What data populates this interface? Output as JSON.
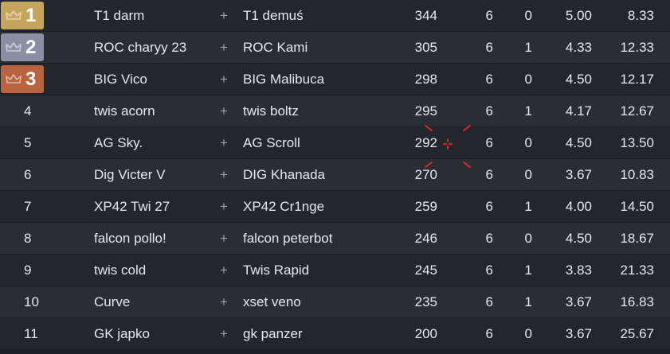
{
  "rows": [
    {
      "rank": "1",
      "player1": "T1 darm",
      "plus": "+",
      "player2": "T1 demuś",
      "score": "344",
      "games": "6",
      "wins": "0",
      "avg": "5.00",
      "avg_place": "8.33",
      "badge": "gold"
    },
    {
      "rank": "2",
      "player1": "ROC charyy 23",
      "plus": "+",
      "player2": "ROC Kami",
      "score": "305",
      "games": "6",
      "wins": "1",
      "avg": "4.33",
      "avg_place": "12.33",
      "badge": "silver"
    },
    {
      "rank": "3",
      "player1": "BIG Vico",
      "plus": "+",
      "player2": "BIG Malibuca",
      "score": "298",
      "games": "6",
      "wins": "0",
      "avg": "4.50",
      "avg_place": "12.17",
      "badge": "bronze"
    },
    {
      "rank": "4",
      "player1": "twis acorn",
      "plus": "+",
      "player2": "twis boltz",
      "score": "295",
      "games": "6",
      "wins": "1",
      "avg": "4.17",
      "avg_place": "12.67"
    },
    {
      "rank": "5",
      "player1": "AG Sky.",
      "plus": "+",
      "player2": "AG Scroll",
      "score": "292",
      "games": "6",
      "wins": "0",
      "avg": "4.50",
      "avg_place": "13.50"
    },
    {
      "rank": "6",
      "player1": "Dig Victer V",
      "plus": "+",
      "player2": "DIG Khanada",
      "score": "270",
      "games": "6",
      "wins": "0",
      "avg": "3.67",
      "avg_place": "10.83"
    },
    {
      "rank": "7",
      "player1": "XP42 Twi 27",
      "plus": "+",
      "player2": "XP42 Cr1nge",
      "score": "259",
      "games": "6",
      "wins": "1",
      "avg": "4.00",
      "avg_place": "14.50"
    },
    {
      "rank": "8",
      "player1": "falcon pollo!",
      "plus": "+",
      "player2": "falcon peterbot",
      "score": "246",
      "games": "6",
      "wins": "0",
      "avg": "4.50",
      "avg_place": "18.67"
    },
    {
      "rank": "9",
      "player1": "twis cold",
      "plus": "+",
      "player2": "Twis Rapid",
      "score": "245",
      "games": "6",
      "wins": "1",
      "avg": "3.83",
      "avg_place": "21.33"
    },
    {
      "rank": "10",
      "player1": "Curve",
      "plus": "+",
      "player2": "xset veno",
      "score": "235",
      "games": "6",
      "wins": "1",
      "avg": "3.67",
      "avg_place": "16.83"
    },
    {
      "rank": "11",
      "player1": "GK japko",
      "plus": "+",
      "player2": "gk panzer",
      "score": "200",
      "games": "6",
      "wins": "0",
      "avg": "3.67",
      "avg_place": "25.67"
    }
  ],
  "colors": {
    "gold": "#c5a45d",
    "silver": "#8b8fa3",
    "bronze": "#b9633f",
    "row_odd": "#23262c",
    "row_even": "#2a2d34",
    "marker": "#e0262b"
  },
  "icons": {
    "crown": "crown-icon",
    "marker": "crosshair-icon"
  }
}
